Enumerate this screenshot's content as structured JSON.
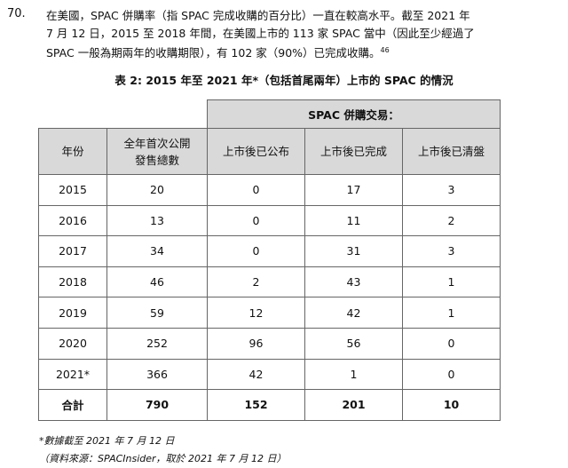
{
  "paragraph": {
    "number": "70.",
    "lines": [
      "在美國，SPAC 併購率（指 SPAC 完成收購的百分比）一直在較高水平。截至 2021 年",
      "7 月 12 日，2015 至 2018 年間，在美國上市的 113 家 SPAC 當中（因此至少經過了",
      "SPAC 一般為期兩年的收購期限），有 102 家（90%）已完成收購。"
    ],
    "footnote_ref": "46"
  },
  "table": {
    "caption": "表 2: 2015 年至 2021 年*（包括首尾兩年）上市的 SPAC 的情況",
    "group_header": "SPAC 併購交易：",
    "headers": [
      "年份",
      "全年首次公開發售總數",
      "上市後已公布",
      "上市後已完成",
      "上市後已清盤"
    ],
    "rows": [
      [
        "2015",
        20,
        0,
        17,
        3
      ],
      [
        "2016",
        13,
        0,
        11,
        2
      ],
      [
        "2017",
        34,
        0,
        31,
        3
      ],
      [
        "2018",
        46,
        2,
        43,
        1
      ],
      [
        "2019",
        59,
        12,
        42,
        1
      ],
      [
        "2020",
        252,
        96,
        56,
        0
      ],
      [
        "2021*",
        366,
        42,
        1,
        0
      ]
    ],
    "total": [
      "合計",
      790,
      152,
      201,
      10
    ]
  },
  "notes": [
    "*數據截至 2021 年 7 月 12 日",
    "（資料來源：SPACInsider，取於 2021 年 7 月 12 日）"
  ]
}
